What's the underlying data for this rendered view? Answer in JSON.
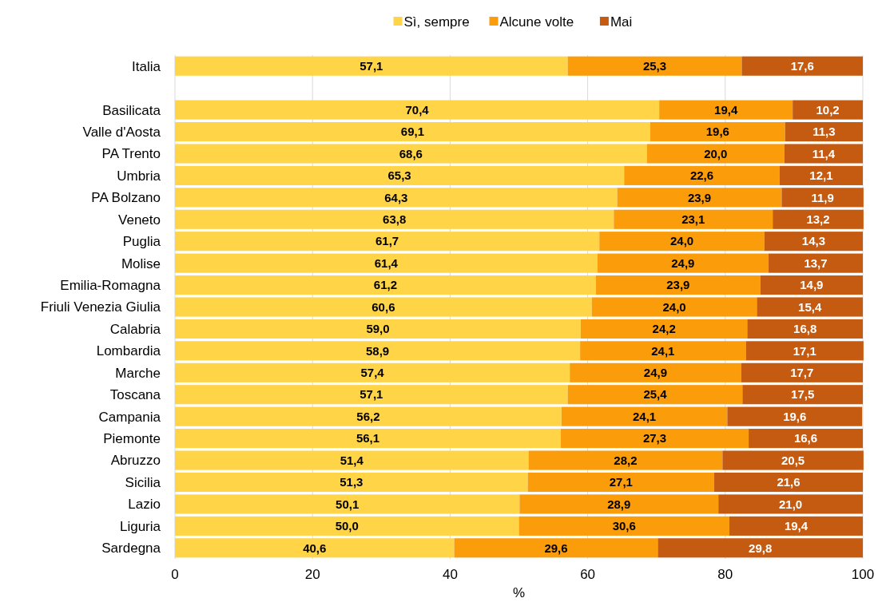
{
  "chart_data": {
    "type": "bar",
    "orientation": "horizontal",
    "stacked": true,
    "xlabel": "%",
    "categories": [
      "Italia",
      null,
      "Basilicata",
      "Valle d'Aosta",
      "PA Trento",
      "Umbria",
      "PA Bolzano",
      "Veneto",
      "Puglia",
      "Molise",
      "Emilia-Romagna",
      "Friuli Venezia Giulia",
      "Calabria",
      "Lombardia",
      "Marche",
      "Toscana",
      "Campania",
      "Piemonte",
      "Abruzzo",
      "Sicilia",
      "Lazio",
      "Liguria",
      "Sardegna"
    ],
    "series": [
      {
        "name": "Sì, sempre",
        "color": "#ffd447",
        "values": [
          57.1,
          null,
          70.4,
          69.1,
          68.6,
          65.3,
          64.3,
          63.8,
          61.7,
          61.4,
          61.2,
          60.6,
          59.0,
          58.9,
          57.4,
          57.1,
          56.2,
          56.1,
          51.4,
          51.3,
          50.1,
          50.0,
          40.6
        ],
        "value_labels": [
          "57,1",
          null,
          "70,4",
          "69,1",
          "68,6",
          "65,3",
          "64,3",
          "63,8",
          "61,7",
          "61,4",
          "61,2",
          "60,6",
          "59,0",
          "58,9",
          "57,4",
          "57,1",
          "56,2",
          "56,1",
          "51,4",
          "51,3",
          "50,1",
          "50,0",
          "40,6"
        ]
      },
      {
        "name": "Alcune volte",
        "color": "#fb9c0a",
        "values": [
          25.3,
          null,
          19.4,
          19.6,
          20.0,
          22.6,
          23.9,
          23.1,
          24.0,
          24.9,
          23.9,
          24.0,
          24.2,
          24.1,
          24.9,
          25.4,
          24.1,
          27.3,
          28.2,
          27.1,
          28.9,
          30.6,
          29.6
        ],
        "value_labels": [
          "25,3",
          null,
          "19,4",
          "19,6",
          "20,0",
          "22,6",
          "23,9",
          "23,1",
          "24,0",
          "24,9",
          "23,9",
          "24,0",
          "24,2",
          "24,1",
          "24,9",
          "25,4",
          "24,1",
          "27,3",
          "28,2",
          "27,1",
          "28,9",
          "30,6",
          "29,6"
        ]
      },
      {
        "name": "Mai",
        "color": "#c55a11",
        "values": [
          17.6,
          null,
          10.2,
          11.3,
          11.4,
          12.1,
          11.9,
          13.2,
          14.3,
          13.7,
          14.9,
          15.4,
          16.8,
          17.1,
          17.7,
          17.5,
          19.6,
          16.6,
          20.5,
          21.6,
          21.0,
          19.4,
          29.8
        ],
        "value_labels": [
          "17,6",
          null,
          "10,2",
          "11,3",
          "11,4",
          "12,1",
          "11,9",
          "13,2",
          "14,3",
          "13,7",
          "14,9",
          "15,4",
          "16,8",
          "17,1",
          "17,7",
          "17,5",
          "19,6",
          "16,6",
          "20,5",
          "21,6",
          "21,0",
          "19,4",
          "29,8"
        ]
      }
    ],
    "xlim": [
      0,
      100
    ],
    "xticks": [
      0,
      20,
      40,
      60,
      80,
      100
    ],
    "grid": "x",
    "legend": "top"
  }
}
